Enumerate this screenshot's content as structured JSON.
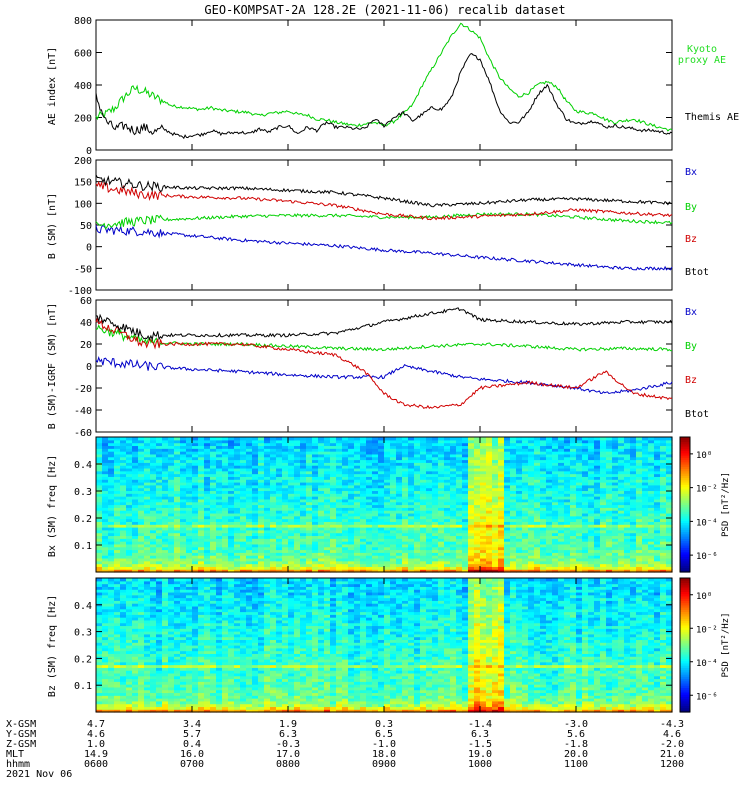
{
  "title": "GEO-KOMPSAT-2A 128.2E (2021-11-06) recalib dataset",
  "colors": {
    "black": "#000000",
    "blue": "#0000c8",
    "green": "#00d000",
    "red": "#d00000",
    "kyoto": "#22dd22"
  },
  "chart_data": [
    {
      "type": "line",
      "panel": "ae",
      "ylabel": "AE index [nT]",
      "ylim": [
        0,
        800
      ],
      "yticks": [
        "0",
        "200",
        "400",
        "600",
        "800"
      ],
      "xlim": [
        6,
        12
      ],
      "series": [
        {
          "name": "Kyoto proxy AE",
          "color": "green",
          "x": [
            6.0,
            6.1,
            6.2,
            6.3,
            6.4,
            6.5,
            6.6,
            6.7,
            6.8,
            6.9,
            7.0,
            7.1,
            7.2,
            7.3,
            7.4,
            7.5,
            7.6,
            7.7,
            7.8,
            7.9,
            8.0,
            8.1,
            8.2,
            8.3,
            8.4,
            8.5,
            8.6,
            8.7,
            8.8,
            8.9,
            9.0,
            9.1,
            9.2,
            9.3,
            9.4,
            9.5,
            9.6,
            9.7,
            9.8,
            9.9,
            10.0,
            10.1,
            10.2,
            10.3,
            10.4,
            10.5,
            10.6,
            10.7,
            10.8,
            10.9,
            11.0,
            11.1,
            11.2,
            11.3,
            11.4,
            11.5,
            11.6,
            11.7,
            11.8,
            11.9,
            12.0
          ],
          "y": [
            200,
            220,
            260,
            330,
            380,
            360,
            330,
            300,
            270,
            265,
            255,
            250,
            260,
            245,
            240,
            235,
            230,
            210,
            225,
            230,
            240,
            220,
            215,
            190,
            185,
            170,
            160,
            150,
            160,
            170,
            150,
            175,
            220,
            280,
            400,
            500,
            600,
            700,
            780,
            740,
            690,
            560,
            450,
            380,
            330,
            350,
            400,
            420,
            390,
            300,
            240,
            230,
            225,
            190,
            170,
            180,
            190,
            170,
            150,
            135,
            120
          ]
        },
        {
          "name": "Themis AE",
          "color": "black",
          "x": [
            6.0,
            6.1,
            6.2,
            6.3,
            6.4,
            6.5,
            6.6,
            6.7,
            6.8,
            6.9,
            7.0,
            7.1,
            7.2,
            7.3,
            7.4,
            7.5,
            7.6,
            7.7,
            7.8,
            7.9,
            8.0,
            8.1,
            8.2,
            8.3,
            8.4,
            8.5,
            8.6,
            8.7,
            8.8,
            8.9,
            9.0,
            9.1,
            9.2,
            9.3,
            9.4,
            9.5,
            9.6,
            9.7,
            9.8,
            9.9,
            10.0,
            10.1,
            10.2,
            10.3,
            10.4,
            10.5,
            10.6,
            10.7,
            10.8,
            10.9,
            11.0,
            11.1,
            11.2,
            11.3,
            11.4,
            11.5,
            11.6,
            11.7,
            11.8,
            11.9,
            12.0
          ],
          "y": [
            330,
            180,
            130,
            150,
            120,
            140,
            110,
            130,
            100,
            80,
            90,
            95,
            120,
            100,
            105,
            110,
            100,
            130,
            110,
            140,
            150,
            100,
            140,
            120,
            170,
            140,
            140,
            130,
            130,
            190,
            150,
            200,
            230,
            180,
            220,
            260,
            250,
            320,
            480,
            590,
            560,
            420,
            250,
            170,
            170,
            230,
            340,
            400,
            280,
            190,
            160,
            170,
            180,
            140,
            150,
            140,
            130,
            120,
            120,
            110,
            100
          ]
        }
      ]
    },
    {
      "type": "line",
      "panel": "bsm",
      "ylabel": "B (SM) [nT]",
      "ylim": [
        -100,
        200
      ],
      "yticks": [
        "-100",
        "-50",
        "0",
        "50",
        "100",
        "150",
        "200"
      ],
      "xlim": [
        6,
        12
      ],
      "series": [
        {
          "name": "Bx",
          "color": "blue",
          "x": [
            6.0,
            6.5,
            7.0,
            7.5,
            8.0,
            8.5,
            9.0,
            9.5,
            10.0,
            10.5,
            11.0,
            11.5,
            12.0
          ],
          "y": [
            40,
            35,
            25,
            15,
            8,
            2,
            -8,
            -15,
            -25,
            -33,
            -42,
            -50,
            -50
          ]
        },
        {
          "name": "By",
          "color": "green",
          "x": [
            6.0,
            6.5,
            7.0,
            7.5,
            8.0,
            8.5,
            9.0,
            9.5,
            10.0,
            10.5,
            11.0,
            11.5,
            12.0
          ],
          "y": [
            50,
            60,
            65,
            70,
            72,
            72,
            68,
            68,
            75,
            75,
            68,
            60,
            55
          ]
        },
        {
          "name": "Bz",
          "color": "red",
          "x": [
            6.0,
            6.5,
            7.0,
            7.5,
            8.0,
            8.5,
            9.0,
            9.5,
            10.0,
            10.5,
            11.0,
            11.5,
            12.0
          ],
          "y": [
            140,
            120,
            115,
            112,
            105,
            95,
            75,
            65,
            70,
            75,
            85,
            78,
            72
          ]
        },
        {
          "name": "Btot",
          "color": "black",
          "x": [
            6.0,
            6.5,
            7.0,
            7.5,
            8.0,
            8.5,
            9.0,
            9.5,
            10.0,
            10.5,
            11.0,
            11.5,
            12.0
          ],
          "y": [
            155,
            140,
            135,
            135,
            130,
            125,
            112,
            95,
            100,
            108,
            110,
            105,
            100
          ]
        }
      ]
    },
    {
      "type": "line",
      "panel": "bsm-igrf",
      "ylabel": "B (SM)-IGRF (SM) [nT]",
      "ylim": [
        -60,
        60
      ],
      "yticks": [
        "-60",
        "-40",
        "-20",
        "0",
        "20",
        "40",
        "60"
      ],
      "xlim": [
        6,
        12
      ],
      "series": [
        {
          "name": "Bx",
          "color": "blue",
          "x": [
            6.0,
            6.5,
            7.0,
            7.5,
            8.0,
            8.5,
            9.0,
            9.2,
            9.5,
            9.8,
            10.0,
            10.5,
            11.0,
            11.3,
            11.6,
            12.0
          ],
          "y": [
            5,
            0,
            -3,
            -5,
            -8,
            -10,
            -10,
            0,
            -5,
            -10,
            -12,
            -15,
            -20,
            -25,
            -22,
            -15
          ]
        },
        {
          "name": "By",
          "color": "green",
          "x": [
            6.0,
            6.5,
            7.0,
            7.5,
            8.0,
            8.5,
            9.0,
            9.5,
            10.0,
            10.5,
            11.0,
            11.5,
            12.0
          ],
          "y": [
            35,
            22,
            20,
            20,
            18,
            16,
            15,
            18,
            20,
            18,
            15,
            16,
            15
          ]
        },
        {
          "name": "Bz",
          "color": "red",
          "x": [
            6.0,
            6.5,
            7.0,
            7.5,
            8.0,
            8.5,
            8.8,
            9.0,
            9.2,
            9.5,
            9.8,
            10.0,
            10.5,
            11.0,
            11.3,
            11.6,
            12.0
          ],
          "y": [
            40,
            20,
            20,
            20,
            15,
            10,
            -5,
            -25,
            -35,
            -38,
            -35,
            -20,
            -15,
            -20,
            -5,
            -25,
            -30
          ]
        },
        {
          "name": "Btot",
          "color": "black",
          "x": [
            6.0,
            6.5,
            7.0,
            7.5,
            8.0,
            8.5,
            9.0,
            9.5,
            9.8,
            10.0,
            10.5,
            11.0,
            11.5,
            12.0
          ],
          "y": [
            45,
            28,
            28,
            28,
            28,
            30,
            40,
            48,
            52,
            42,
            40,
            38,
            40,
            40
          ]
        }
      ]
    },
    {
      "type": "heatmap",
      "panel": "bx-psd",
      "ylabel": "Bx (SM) freq [Hz]",
      "ylim": [
        0,
        0.5
      ],
      "yticks": [
        "0.1",
        "0.2",
        "0.3",
        "0.4"
      ],
      "colorbar_label": "PSD [nT²/Hz]",
      "colorbar_ticks": [
        "10⁰",
        "10⁻²",
        "10⁻⁴",
        "10⁻⁶"
      ],
      "colorbar_exp": [
        0,
        -2,
        -4,
        -6
      ],
      "colorbar_range": [
        -7,
        1
      ],
      "enhanced_interval": [
        9.85,
        10.25
      ]
    },
    {
      "type": "heatmap",
      "panel": "bz-psd",
      "ylabel": "Bz (SM) freq [Hz]",
      "ylim": [
        0,
        0.5
      ],
      "yticks": [
        "0.1",
        "0.2",
        "0.3",
        "0.4"
      ],
      "colorbar_label": "PSD [nT²/Hz]",
      "colorbar_ticks": [
        "10⁰",
        "10⁻²",
        "10⁻⁴",
        "10⁻⁶"
      ],
      "colorbar_exp": [
        0,
        -2,
        -4,
        -6
      ],
      "colorbar_range": [
        -7,
        1
      ],
      "enhanced_interval": [
        9.85,
        10.25
      ]
    }
  ],
  "legend": {
    "ae": [
      "Kyoto",
      "proxy AE",
      "Themis AE"
    ],
    "bsm": [
      "Bx",
      "By",
      "Bz",
      "Btot"
    ],
    "bigrf": [
      "Bx",
      "By",
      "Bz",
      "Btot"
    ]
  },
  "xaxis_table": {
    "row_labels": [
      "X-GSM",
      "Y-GSM",
      "Z-GSM",
      "MLT",
      "hhmm"
    ],
    "columns": [
      [
        "4.7",
        "4.6",
        "1.0",
        "14.9",
        "0600"
      ],
      [
        "3.4",
        "5.7",
        "0.4",
        "16.0",
        "0700"
      ],
      [
        "1.9",
        "6.3",
        "-0.3",
        "17.0",
        "0800"
      ],
      [
        "0.3",
        "6.5",
        "-1.0",
        "18.0",
        "0900"
      ],
      [
        "-1.4",
        "6.3",
        "-1.5",
        "19.0",
        "1000"
      ],
      [
        "-3.0",
        "5.6",
        "-1.8",
        "20.0",
        "1100"
      ],
      [
        "-4.3",
        "4.6",
        "-2.0",
        "21.0",
        "1200"
      ]
    ],
    "date": "2021 Nov 06"
  }
}
